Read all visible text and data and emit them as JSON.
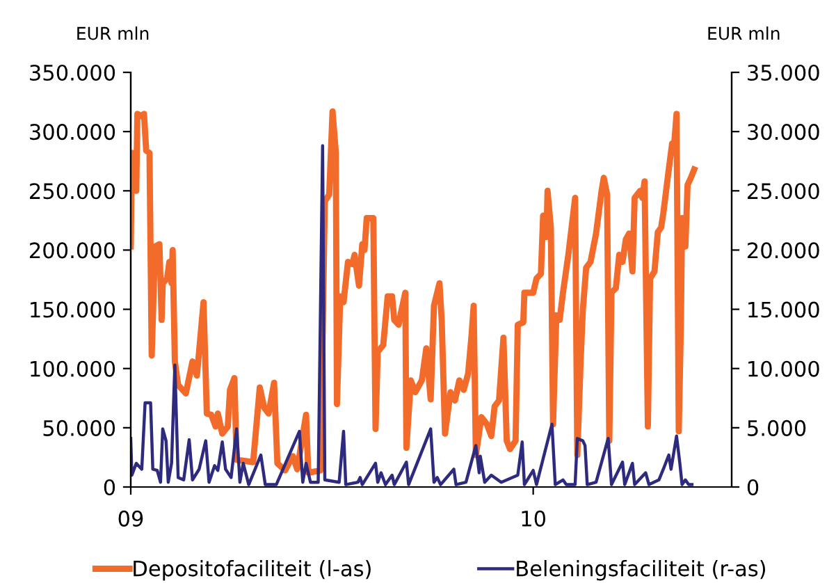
{
  "chart_data": {
    "type": "line",
    "ylabel": "EUR mln",
    "y2label": "EUR mln",
    "xlim": [
      "2009-01-01",
      "2010-06-30"
    ],
    "xticks": [
      {
        "value": "2009-01-01",
        "label": "09"
      },
      {
        "value": "2010-01-01",
        "label": "10"
      }
    ],
    "ylim": [
      0,
      350000
    ],
    "yticks": [
      {
        "value": 0,
        "label": "0"
      },
      {
        "value": 50000,
        "label": "50.000"
      },
      {
        "value": 100000,
        "label": "100.000"
      },
      {
        "value": 150000,
        "label": "150.000"
      },
      {
        "value": 200000,
        "label": "200.000"
      },
      {
        "value": 250000,
        "label": "250.000"
      },
      {
        "value": 300000,
        "label": "300.000"
      },
      {
        "value": 350000,
        "label": "350.000"
      }
    ],
    "y2lim": [
      0,
      35000
    ],
    "y2ticks": [
      {
        "value": 0,
        "label": "0"
      },
      {
        "value": 5000,
        "label": "5.000"
      },
      {
        "value": 10000,
        "label": "10.000"
      },
      {
        "value": 15000,
        "label": "15.000"
      },
      {
        "value": 20000,
        "label": "20.000"
      },
      {
        "value": 25000,
        "label": "25.000"
      },
      {
        "value": 30000,
        "label": "30.000"
      },
      {
        "value": 35000,
        "label": "35.000"
      }
    ],
    "grid": false,
    "legend": "bottom",
    "marker": "none",
    "line_style": "solid",
    "series": [
      {
        "name": "Depositofaciliteit (l-as)",
        "color": "#f26b2a",
        "axis": "y",
        "x": [
          "2009-01-01",
          "2009-01-02",
          "2009-01-06",
          "2009-01-07",
          "2009-01-11",
          "2009-01-13",
          "2009-01-15",
          "2009-01-18",
          "2009-01-20",
          "2009-01-23",
          "2009-01-27",
          "2009-01-29",
          "2009-01-30",
          "2009-02-03",
          "2009-02-05",
          "2009-02-07",
          "2009-02-08",
          "2009-02-10",
          "2009-02-13",
          "2009-02-20",
          "2009-02-26",
          "2009-03-02",
          "2009-03-08",
          "2009-03-11",
          "2009-03-15",
          "2009-03-19",
          "2009-03-21",
          "2009-03-25",
          "2009-03-30",
          "2009-04-01",
          "2009-04-05",
          "2009-04-07",
          "2009-04-22",
          "2009-04-28",
          "2009-05-02",
          "2009-05-06",
          "2009-05-11",
          "2009-05-14",
          "2009-05-21",
          "2009-05-28",
          "2009-06-01",
          "2009-06-09",
          "2009-06-11",
          "2009-06-22",
          "2009-06-26",
          "2009-06-30",
          "2009-07-03",
          "2009-07-06",
          "2009-07-07",
          "2009-07-10",
          "2009-07-13",
          "2009-07-17",
          "2009-07-21",
          "2009-07-23",
          "2009-07-27",
          "2009-07-30",
          "2009-08-01",
          "2009-08-03",
          "2009-08-09",
          "2009-08-11",
          "2009-08-13",
          "2009-08-18",
          "2009-08-22",
          "2009-08-26",
          "2009-08-28",
          "2009-09-01",
          "2009-09-03",
          "2009-09-07",
          "2009-09-08",
          "2009-09-12",
          "2009-09-16",
          "2009-09-22",
          "2009-09-26",
          "2009-09-30",
          "2009-10-03",
          "2009-10-08",
          "2009-10-10",
          "2009-10-13",
          "2009-10-18",
          "2009-10-22",
          "2009-10-26",
          "2009-10-30",
          "2009-11-03",
          "2009-11-06",
          "2009-11-08",
          "2009-11-10",
          "2009-11-15",
          "2009-11-20",
          "2009-11-24",
          "2009-11-27",
          "2009-12-01",
          "2009-12-05",
          "2009-12-08",
          "2009-12-11",
          "2009-12-16",
          "2009-12-18",
          "2009-12-23",
          "2009-12-24",
          "2010-01-01",
          "2010-01-04",
          "2010-01-08",
          "2010-01-10",
          "2010-01-13",
          "2010-01-14",
          "2010-01-17",
          "2010-01-19",
          "2010-01-22",
          "2010-01-25",
          "2010-01-28",
          "2010-02-02",
          "2010-02-08",
          "2010-02-10",
          "2010-02-13",
          "2010-02-15",
          "2010-02-18",
          "2010-02-22",
          "2010-02-27",
          "2010-03-04",
          "2010-03-06",
          "2010-03-09",
          "2010-03-11",
          "2010-03-13",
          "2010-03-17",
          "2010-03-20",
          "2010-03-23",
          "2010-03-26",
          "2010-03-29",
          "2010-04-01",
          "2010-04-03",
          "2010-04-08",
          "2010-04-10",
          "2010-04-12",
          "2010-04-15",
          "2010-04-17",
          "2010-04-21",
          "2010-04-24",
          "2010-04-27",
          "2010-04-29",
          "2010-05-03",
          "2010-05-07",
          "2010-05-09",
          "2010-05-11",
          "2010-05-13",
          "2010-05-15",
          "2010-05-16",
          "2010-05-19",
          "2010-05-21",
          "2010-05-24",
          "2010-05-27"
        ],
        "values": [
          203000,
          282000,
          250000,
          315000,
          313000,
          315000,
          284000,
          282000,
          111000,
          203000,
          205000,
          141000,
          172000,
          176000,
          190000,
          172000,
          200000,
          106000,
          86000,
          79000,
          106000,
          94000,
          156000,
          62000,
          61000,
          51000,
          62000,
          45000,
          51000,
          82000,
          92000,
          23000,
          21000,
          84000,
          67000,
          62000,
          88000,
          20000,
          14000,
          26000,
          15000,
          61000,
          12000,
          14000,
          241000,
          247000,
          317000,
          282000,
          70000,
          161000,
          156000,
          190000,
          188000,
          196000,
          170000,
          205000,
          200000,
          227000,
          227000,
          49000,
          114000,
          120000,
          161000,
          161000,
          141000,
          137000,
          147000,
          164000,
          33000,
          90000,
          80000,
          90000,
          117000,
          74000,
          153000,
          172000,
          141000,
          45000,
          80000,
          73000,
          90000,
          82000,
          96000,
          127000,
          153000,
          27000,
          59000,
          53000,
          43000,
          68000,
          73000,
          126000,
          39000,
          32000,
          39000,
          137000,
          139000,
          164000,
          164000,
          176000,
          180000,
          229000,
          211000,
          250000,
          219000,
          53000,
          145000,
          141000,
          164000,
          197000,
          244000,
          27000,
          106000,
          149000,
          185000,
          190000,
          214000,
          250000,
          261000,
          247000,
          39000,
          164000,
          168000,
          196000,
          190000,
          209000,
          214000,
          182000,
          244000,
          250000,
          244000,
          258000,
          51000,
          176000,
          182000,
          215000,
          219000,
          231000,
          261000,
          290000,
          291000,
          315000,
          47000,
          141000,
          227000,
          203000,
          255000,
          261000,
          268000
        ]
      },
      {
        "name": "Beleningsfaciliteit (r-as)",
        "color": "#2e2a7e",
        "axis": "y2",
        "x": [
          "2009-01-01",
          "2009-01-02",
          "2009-01-06",
          "2009-01-11",
          "2009-01-14",
          "2009-01-19",
          "2009-01-21",
          "2009-01-25",
          "2009-01-28",
          "2009-01-30",
          "2009-02-02",
          "2009-02-04",
          "2009-02-07",
          "2009-02-10",
          "2009-02-13",
          "2009-02-18",
          "2009-02-23",
          "2009-02-26",
          "2009-03-04",
          "2009-03-10",
          "2009-03-13",
          "2009-03-18",
          "2009-03-21",
          "2009-03-25",
          "2009-03-28",
          "2009-04-02",
          "2009-04-07",
          "2009-04-10",
          "2009-04-13",
          "2009-04-18",
          "2009-04-29",
          "2009-05-03",
          "2009-05-13",
          "2009-06-03",
          "2009-06-06",
          "2009-06-09",
          "2009-06-13",
          "2009-06-20",
          "2009-06-24",
          "2009-06-26",
          "2009-07-09",
          "2009-07-13",
          "2009-07-15",
          "2009-07-26",
          "2009-07-28",
          "2009-07-30",
          "2009-08-11",
          "2009-08-13",
          "2009-08-16",
          "2009-08-20",
          "2009-08-26",
          "2009-08-28",
          "2009-09-08",
          "2009-09-10",
          "2009-09-30",
          "2009-10-03",
          "2009-10-06",
          "2009-10-09",
          "2009-10-21",
          "2009-10-23",
          "2009-11-01",
          "2009-11-10",
          "2009-11-13",
          "2009-11-14",
          "2009-11-18",
          "2009-11-24",
          "2009-12-03",
          "2009-12-18",
          "2009-12-22",
          "2009-12-24",
          "2010-01-01",
          "2010-01-04",
          "2010-01-18",
          "2010-01-21",
          "2010-01-28",
          "2010-01-31",
          "2010-02-08",
          "2010-02-10",
          "2010-02-15",
          "2010-02-17",
          "2010-02-19",
          "2010-02-27",
          "2010-03-10",
          "2010-03-13",
          "2010-03-23",
          "2010-03-25",
          "2010-04-01",
          "2010-04-03",
          "2010-04-13",
          "2010-04-16",
          "2010-04-25",
          "2010-04-29",
          "2010-05-04",
          "2010-05-06",
          "2010-05-11",
          "2010-05-14",
          "2010-05-16",
          "2010-05-19",
          "2010-05-22",
          "2010-05-25"
        ],
        "values": [
          4100,
          1000,
          2000,
          1500,
          7100,
          7100,
          1500,
          1400,
          400,
          4900,
          3900,
          400,
          2000,
          10300,
          800,
          600,
          4000,
          600,
          1500,
          3900,
          400,
          1800,
          1400,
          3800,
          1500,
          800,
          4900,
          400,
          2000,
          200,
          2700,
          200,
          200,
          4700,
          400,
          2000,
          400,
          400,
          28800,
          600,
          400,
          4700,
          200,
          400,
          800,
          200,
          2000,
          400,
          1200,
          200,
          1000,
          200,
          2100,
          200,
          4900,
          400,
          800,
          200,
          1500,
          200,
          400,
          3500,
          1200,
          2600,
          400,
          1000,
          400,
          1000,
          3800,
          200,
          1400,
          200,
          5300,
          200,
          600,
          200,
          200,
          4100,
          3900,
          3500,
          200,
          400,
          4100,
          200,
          2100,
          200,
          2000,
          200,
          1200,
          200,
          600,
          1500,
          2700,
          1500,
          4300,
          2000,
          200,
          600,
          200,
          200
        ]
      }
    ]
  }
}
